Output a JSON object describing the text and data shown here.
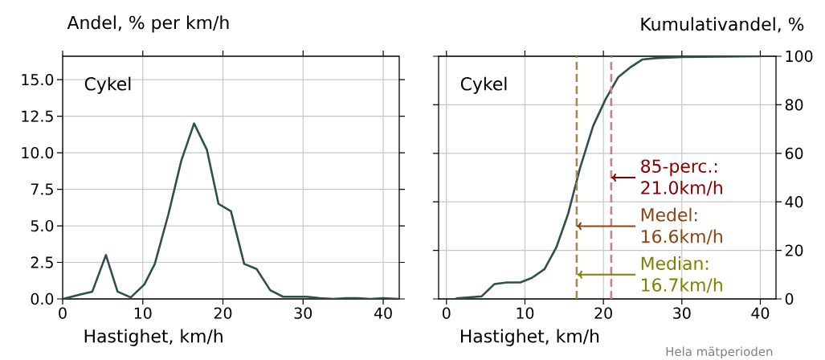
{
  "chart_data": [
    {
      "type": "line",
      "ylabel": "Andel, % per km/h",
      "xlabel": "Hastighet, km/h",
      "annotations": [
        "Cykel"
      ],
      "x": [
        0,
        2.2,
        3.7,
        5.4,
        6.85,
        8.5,
        10.2,
        11.5,
        13.2,
        14.8,
        16.4,
        18.0,
        19.45,
        21.0,
        22.65,
        24.2,
        25.9,
        27.5,
        29.1,
        30.5,
        32.1,
        33.8,
        35.4,
        36.8,
        38.4,
        40,
        42
      ],
      "series": [
        {
          "color": "#2f4f4f",
          "values": [
            0,
            0.3,
            0.5,
            3.0,
            0.5,
            0.1,
            1.0,
            2.4,
            5.8,
            9.45,
            12.0,
            10.2,
            6.5,
            6.0,
            2.4,
            2.05,
            0.6,
            0.15,
            0.15,
            0.15,
            0.05,
            0,
            0.05,
            0.05,
            0,
            0.05,
            0
          ]
        }
      ],
      "xlim": [
        0,
        42
      ],
      "ylim": [
        0,
        16.6
      ],
      "xticks": [
        0,
        10,
        20,
        30,
        40
      ],
      "yticks": [
        {
          "value": 0,
          "label": "0.0"
        },
        2.5,
        {
          "value": 5,
          "label": "5.0"
        },
        7.5,
        {
          "value": 10,
          "label": "10.0"
        },
        12.5,
        {
          "value": 15,
          "label": "15.0"
        }
      ],
      "grid": true
    },
    {
      "type": "line",
      "ylabel": "Kumulativandel, %",
      "xlabel": "Hastighet, km/h",
      "annotations": [
        "Cykel",
        {
          "text": "85-perc.: 21.0km/h",
          "x": 21.0,
          "y": 50
        },
        {
          "text": "Medel: 16.6km/h",
          "x": 16.6,
          "y": 30
        },
        {
          "text": "Median: 16.7km/h",
          "x": 16.7,
          "y": 10
        },
        "Hela mätperioden"
      ],
      "x": [
        1.2,
        4.5,
        6.1,
        7.7,
        9.4,
        10.9,
        12.5,
        14.0,
        15.5,
        17.0,
        18.7,
        20.3,
        21.9,
        23.5,
        25.0,
        26.6,
        30,
        40
      ],
      "series": [
        {
          "color": "#2f4f4f",
          "values": [
            0.2,
            1.1,
            6.1,
            6.8,
            6.8,
            8.7,
            12.3,
            21.2,
            35.0,
            53.7,
            71.3,
            82.4,
            91.4,
            95.6,
            98.7,
            99.2,
            99.7,
            100
          ]
        }
      ],
      "ref_lines": [
        {
          "axis": "x",
          "value": 16.6,
          "color": "#a88850",
          "line_style": "dashed"
        },
        {
          "axis": "x",
          "value": 21.0,
          "color": "#c98080",
          "line_style": "dashed"
        }
      ],
      "xlim": [
        -1,
        42
      ],
      "ylim": [
        0,
        100
      ],
      "xticks": [
        0,
        10,
        20,
        30,
        40
      ],
      "yticks": [
        0,
        20,
        40,
        60,
        80,
        100
      ],
      "grid": true
    }
  ]
}
